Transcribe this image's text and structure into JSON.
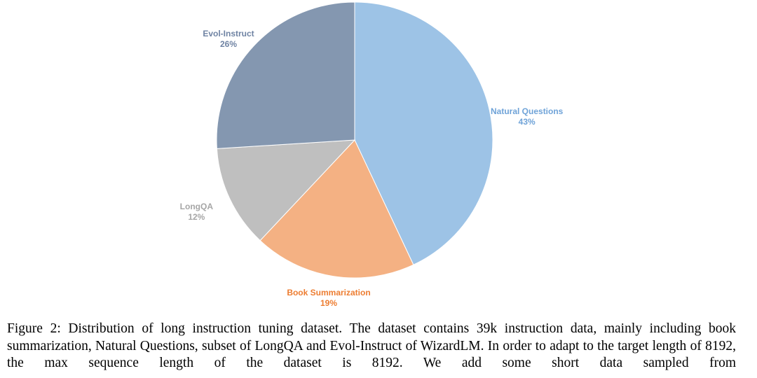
{
  "chart_data": {
    "type": "pie",
    "start_angle_deg": 0,
    "direction": "clockwise",
    "slices": [
      {
        "label": "Natural Questions",
        "value": 43,
        "value_text": "43%",
        "color": "#9dc3e6",
        "text_color": "#6fa3d8"
      },
      {
        "label": "Book Summarization",
        "value": 19,
        "value_text": "19%",
        "color": "#f4b183",
        "text_color": "#ed7d31"
      },
      {
        "label": "LongQA",
        "value": 12,
        "value_text": "12%",
        "color": "#bfbfbf",
        "text_color": "#a6a6a6"
      },
      {
        "label": "Evol-Instruct",
        "value": 26,
        "value_text": "26%",
        "color": "#8497b0",
        "text_color": "#6f83a3"
      }
    ]
  },
  "caption": "Figure 2: Distribution of long instruction tuning dataset. The dataset contains 39k instruction data, mainly including book summarization, Natural Questions, subset of LongQA and Evol-Instruct of WizardLM. In order to adapt to the target length of 8192, the max sequence length of the dataset is 8192. We add some short data sampled from"
}
